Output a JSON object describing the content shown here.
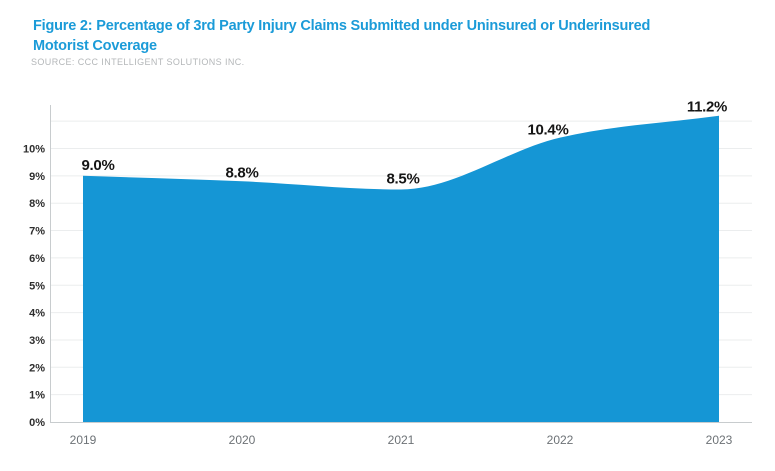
{
  "figure": {
    "title_line1": "Figure 2: Percentage of 3rd Party Injury Claims Submitted under Uninsured or Underinsured",
    "title_line2": "Motorist Coverage",
    "source": "SOURCE: CCC INTELLIGENT SOLUTIONS INC."
  },
  "colors": {
    "title_blue": "#1b9bd8",
    "area_blue": "#1596d5",
    "gridline": "#ebedee",
    "axis_line": "#c8ccce",
    "y_label": "#2e2e2e",
    "x_label": "#6d7276",
    "data_label": "#161616",
    "source_gray": "#b4b7b9"
  },
  "chart_data": {
    "type": "area",
    "title": "Figure 2: Percentage of 3rd Party Injury Claims Submitted under Uninsured or Underinsured Motorist Coverage",
    "source": "SOURCE: CCC INTELLIGENT SOLUTIONS INC.",
    "categories": [
      "2019",
      "2020",
      "2021",
      "2022",
      "2023"
    ],
    "values": [
      9.0,
      8.8,
      8.5,
      10.4,
      11.2
    ],
    "point_labels": [
      "9.0%",
      "8.8%",
      "8.5%",
      "10.4%",
      "11.2%"
    ],
    "ytick_labels": [
      "0%",
      "1%",
      "2%",
      "3%",
      "4%",
      "5%",
      "6%",
      "7%",
      "8%",
      "9%",
      "10%"
    ],
    "ytick_values": [
      0,
      1,
      2,
      3,
      4,
      5,
      6,
      7,
      8,
      9,
      10
    ],
    "ylim": [
      0,
      11.6
    ],
    "grid_lines_at": [
      1,
      2,
      3,
      4,
      5,
      6,
      7,
      8,
      9,
      10,
      11
    ],
    "xlabel": "",
    "ylabel": "",
    "legend": "none",
    "grid": "horizontal",
    "fill_color": "#1596d5"
  }
}
